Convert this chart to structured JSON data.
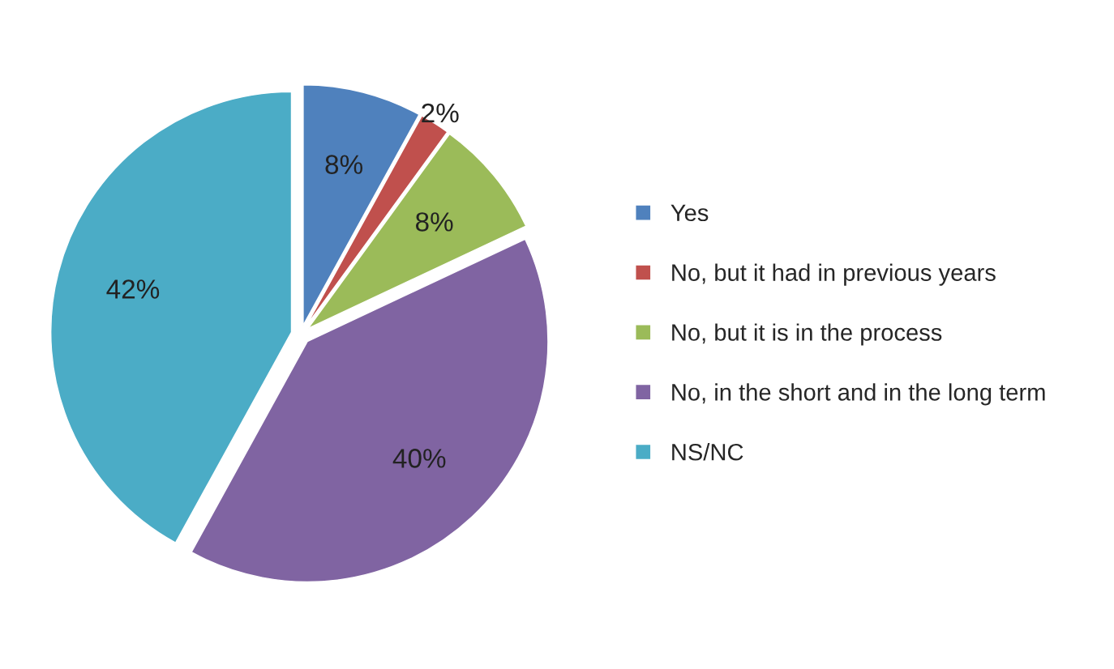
{
  "chart_data": {
    "type": "pie",
    "categories": [
      "Yes",
      "No, but it had in previous years",
      "No, but it is in the process",
      "No, in the short and in the long term",
      "NS/NC"
    ],
    "values": [
      8,
      2,
      8,
      40,
      42
    ],
    "value_labels": [
      "8%",
      "2%",
      "8%",
      "40%",
      "42%"
    ],
    "colors": [
      "#4f81bd",
      "#c0504d",
      "#9bbb59",
      "#8064a2",
      "#4bacc6"
    ],
    "legend": "right"
  }
}
